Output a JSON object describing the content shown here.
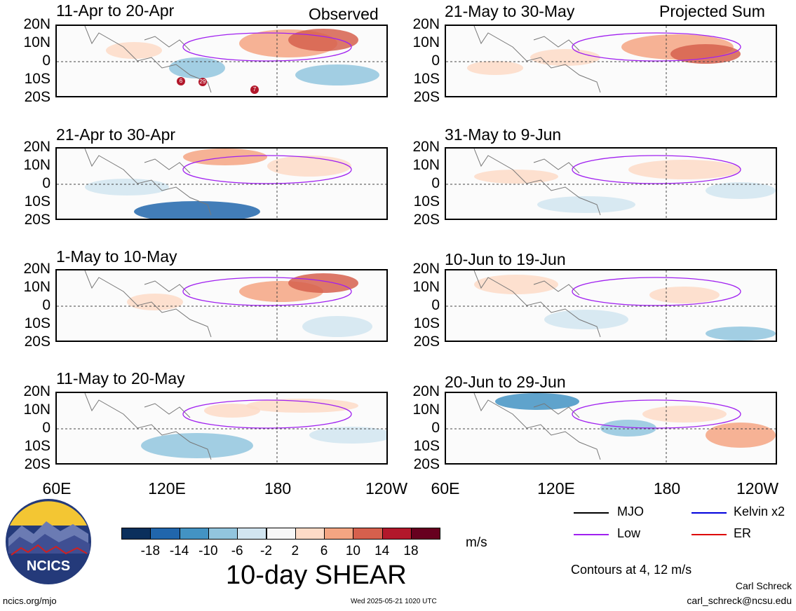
{
  "panels": [
    {
      "title": "11-Apr to 20-Apr",
      "tag": "Observed"
    },
    {
      "title": "21-Apr to 30-Apr",
      "tag": ""
    },
    {
      "title": "1-May to 10-May",
      "tag": ""
    },
    {
      "title": "11-May to 20-May",
      "tag": ""
    },
    {
      "title": "21-May to 30-May",
      "tag": "Projected Sum"
    },
    {
      "title": "31-May to 9-Jun",
      "tag": ""
    },
    {
      "title": "10-Jun to 19-Jun",
      "tag": ""
    },
    {
      "title": "20-Jun to 29-Jun",
      "tag": ""
    }
  ],
  "lat_ticks": [
    "20N",
    "10N",
    "0",
    "10S",
    "20S"
  ],
  "lon_ticks": [
    "60E",
    "120E",
    "180",
    "120W"
  ],
  "storm_labels": [
    "6",
    "29",
    "7"
  ],
  "colorbar": {
    "ticks": [
      "-18",
      "-14",
      "-10",
      "-6",
      "-2",
      "2",
      "6",
      "10",
      "14",
      "18"
    ],
    "colors": [
      "#0b2f5c",
      "#2166ac",
      "#4393c3",
      "#92c5de",
      "#d1e5f0",
      "#f7f7f7",
      "#fddbc7",
      "#f4a582",
      "#d6604d",
      "#b2182b",
      "#67001f"
    ],
    "units": "m/s"
  },
  "legend": {
    "items": [
      {
        "label": "MJO",
        "color": "#000000"
      },
      {
        "label": "Kelvin x2",
        "color": "#0000dd"
      },
      {
        "label": "Low",
        "color": "#a020f0"
      },
      {
        "label": "ER",
        "color": "#dd0000"
      }
    ],
    "contours_note": "Contours at 4, 12 m/s"
  },
  "main_title": "10-day SHEAR",
  "logo_text": "NCICS",
  "footer": {
    "left": "ncics.org/mjo",
    "center": "Wed 2025-05-21 1020 UTC",
    "author": "Carl Schreck",
    "email": "carl_schreck@ncsu.edu"
  }
}
